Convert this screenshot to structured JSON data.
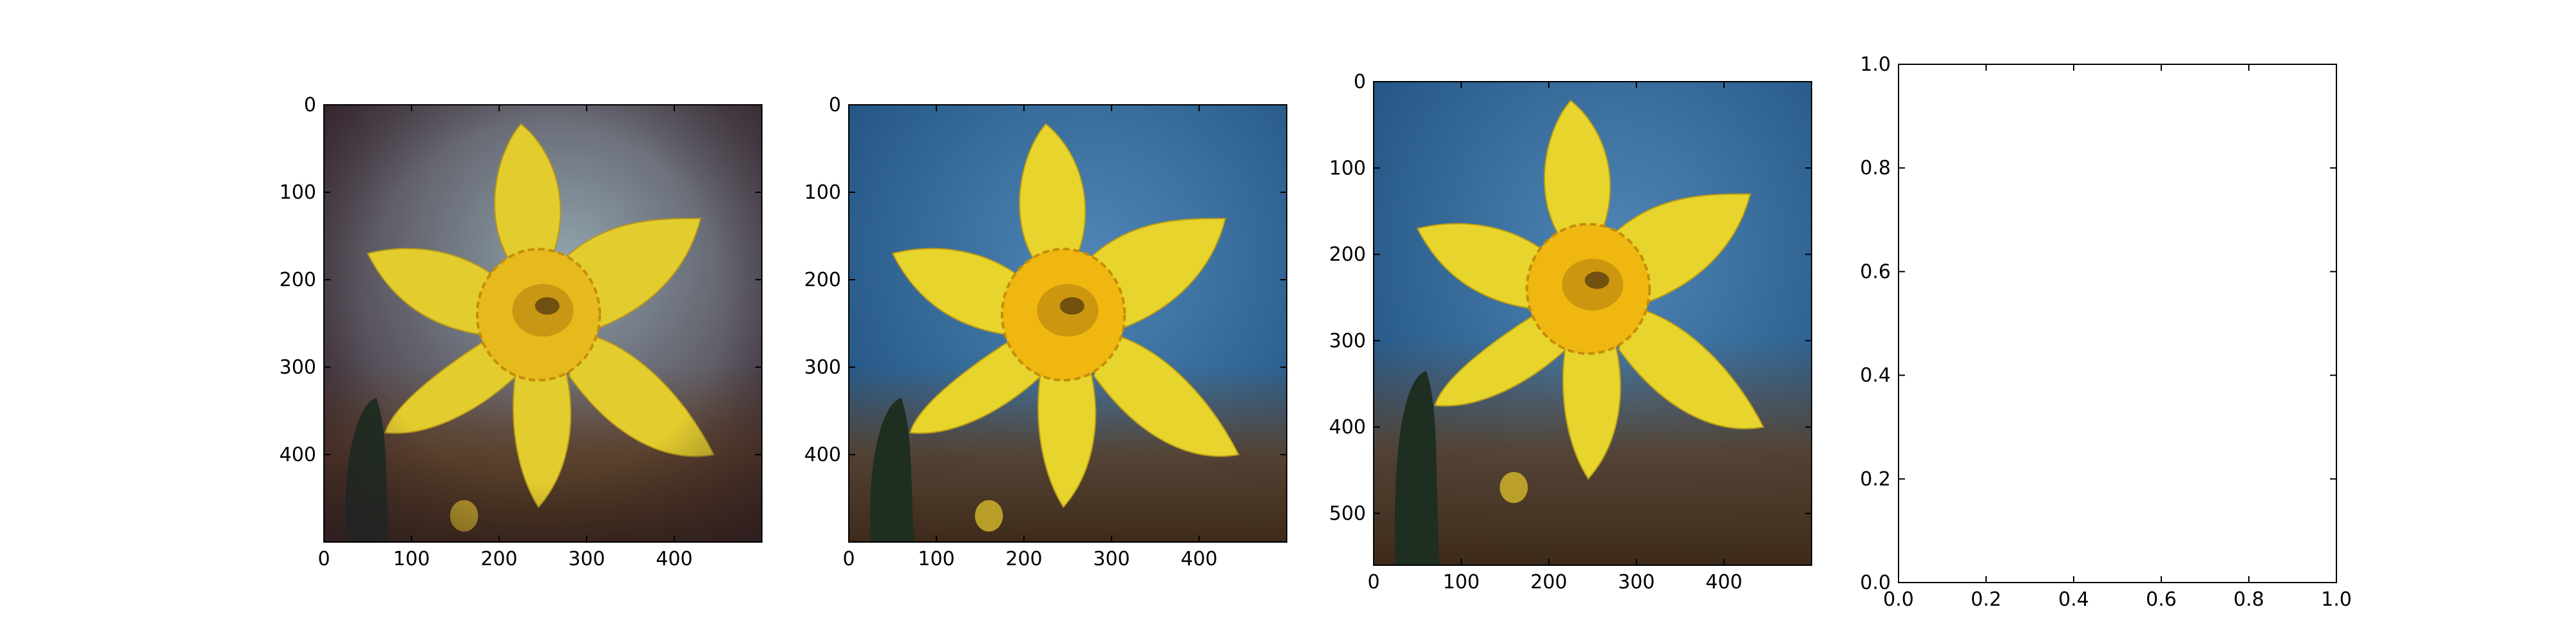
{
  "chart_data": [
    {
      "type": "image",
      "description_id": "panel-1",
      "xlim": [
        0,
        500
      ],
      "ylim": [
        500,
        0
      ],
      "xticks": [
        0,
        100,
        200,
        300,
        400
      ],
      "yticks": [
        0,
        100,
        200,
        300,
        400
      ],
      "tone": "vignetted-warm",
      "colors": {
        "bg_center": "#8fa3ad",
        "bg_edge": "#3a2630",
        "petal": "#e3cc2e",
        "trumpet": "#e6b91c"
      }
    },
    {
      "type": "image",
      "description_id": "panel-2",
      "xlim": [
        0,
        500
      ],
      "ylim": [
        500,
        0
      ],
      "xticks": [
        0,
        100,
        200,
        300,
        400
      ],
      "yticks": [
        0,
        100,
        200,
        300,
        400
      ],
      "tone": "natural",
      "colors": {
        "bg_center": "#4f86b5",
        "bg_edge": "#1d4f7e",
        "petal": "#e7d42c",
        "trumpet": "#f0b711"
      }
    },
    {
      "type": "image",
      "description_id": "panel-3",
      "xlim": [
        0,
        500
      ],
      "ylim": [
        560,
        0
      ],
      "xticks": [
        0,
        100,
        200,
        300,
        400
      ],
      "yticks": [
        0,
        100,
        200,
        300,
        400,
        500
      ],
      "tone": "natural",
      "colors": {
        "bg_center": "#4f86b5",
        "bg_edge": "#1d4f7e",
        "petal": "#e7d42c",
        "trumpet": "#f0b711"
      }
    },
    {
      "type": "empty",
      "xlim": [
        0.0,
        1.0
      ],
      "ylim": [
        0.0,
        1.0
      ],
      "xticks": [
        0.0,
        0.2,
        0.4,
        0.6,
        0.8,
        1.0
      ],
      "yticks": [
        0.0,
        0.2,
        0.4,
        0.6,
        0.8,
        1.0
      ]
    }
  ]
}
